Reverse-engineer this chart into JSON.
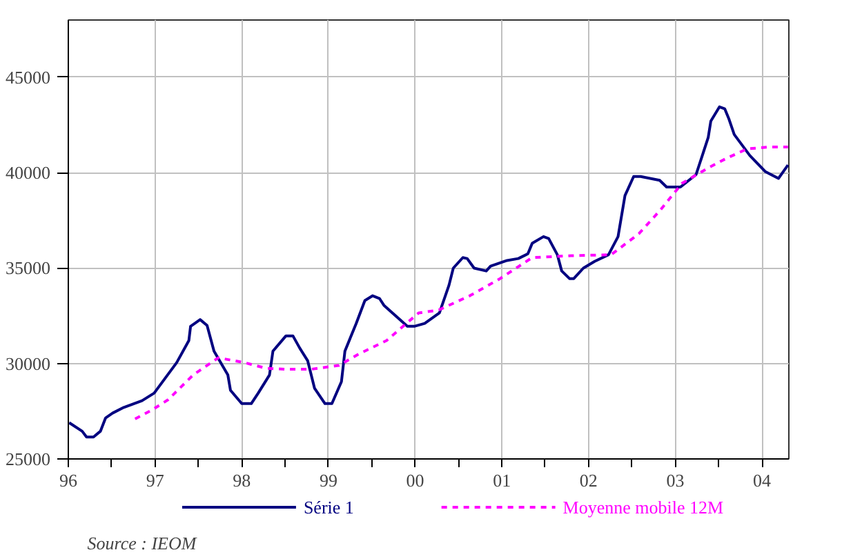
{
  "chart_data": {
    "type": "line",
    "xlim": [
      1996,
      2004.31
    ],
    "xticks": [
      {
        "value": 1996,
        "label": "96"
      },
      {
        "value": 1996.5,
        "label": null
      },
      {
        "value": 1997,
        "label": "97"
      },
      {
        "value": 1997.5,
        "label": null
      },
      {
        "value": 1998,
        "label": "98"
      },
      {
        "value": 1998.5,
        "label": null
      },
      {
        "value": 1999,
        "label": "99"
      },
      {
        "value": 1999.5,
        "label": null
      },
      {
        "value": 2000,
        "label": "00"
      },
      {
        "value": 2000.5,
        "label": null
      },
      {
        "value": 2001,
        "label": "01"
      },
      {
        "value": 2001.5,
        "label": null
      },
      {
        "value": 2002,
        "label": "02"
      },
      {
        "value": 2002.5,
        "label": null
      },
      {
        "value": 2003,
        "label": "03"
      },
      {
        "value": 2003.5,
        "label": null
      },
      {
        "value": 2004,
        "label": "04"
      }
    ],
    "ylim": [
      25000,
      48000
    ],
    "yticks": [
      25000,
      30000,
      35000,
      40000,
      45000
    ],
    "grid": true,
    "legend": "bottom",
    "annotations": [
      "Source : IEOM"
    ],
    "series": [
      {
        "name": "Série 1",
        "color": "#000080",
        "line_style": "solid",
        "x": [
          1996.01,
          1996.16,
          1996.21,
          1996.29,
          1996.37,
          1996.43,
          1996.51,
          1996.64,
          1996.85,
          1996.99,
          1997.25,
          1997.39,
          1997.41,
          1997.52,
          1997.6,
          1997.68,
          1997.84,
          1997.87,
          1998.0,
          1998.11,
          1998.19,
          1998.32,
          1998.36,
          1998.51,
          1998.59,
          1998.67,
          1998.76,
          1998.84,
          1998.96,
          1999.04,
          1999.15,
          1999.19,
          1999.32,
          1999.42,
          1999.51,
          1999.59,
          1999.64,
          1999.91,
          1999.99,
          2000.11,
          2000.28,
          2000.39,
          2000.44,
          2000.55,
          2000.6,
          2000.68,
          2000.82,
          2000.87,
          2001.06,
          2001.19,
          2001.3,
          2001.35,
          2001.48,
          2001.54,
          2001.64,
          2001.69,
          2001.78,
          2001.83,
          2001.94,
          2002.07,
          2002.23,
          2002.34,
          2002.42,
          2002.52,
          2002.6,
          2002.82,
          2002.9,
          2003.06,
          2003.24,
          2003.38,
          2003.41,
          2003.51,
          2003.57,
          2003.62,
          2003.68,
          2003.86,
          2004.04,
          2004.19,
          2004.3
        ],
        "values": [
          26900,
          26450,
          26150,
          26150,
          26450,
          27150,
          27400,
          27700,
          28050,
          28450,
          30050,
          31200,
          31950,
          32300,
          32000,
          30650,
          29400,
          28600,
          27900,
          27900,
          28450,
          29400,
          30650,
          31450,
          31450,
          30800,
          30150,
          28700,
          27900,
          27900,
          29050,
          30650,
          32100,
          33300,
          33550,
          33400,
          33050,
          31950,
          31950,
          32100,
          32650,
          34100,
          35000,
          35550,
          35500,
          35000,
          34850,
          35100,
          35400,
          35500,
          35750,
          36300,
          36650,
          36550,
          35700,
          34850,
          34450,
          34450,
          35000,
          35350,
          35700,
          36650,
          38800,
          39800,
          39800,
          39600,
          39250,
          39250,
          39900,
          41850,
          42700,
          43450,
          43350,
          42800,
          42000,
          40900,
          40050,
          39700,
          40400
        ]
      },
      {
        "name": "Moyenne mobile 12M",
        "color": "#ff00ff",
        "line_style": "dashed",
        "x": [
          1996.77,
          1996.96,
          1997.15,
          1997.44,
          1997.73,
          1998.03,
          1998.28,
          1998.51,
          1998.8,
          1999.12,
          1999.35,
          1999.67,
          2000.04,
          2000.27,
          2000.63,
          2000.98,
          2001.35,
          2001.8,
          2002.26,
          2002.58,
          2002.82,
          2003.08,
          2003.38,
          2003.59,
          2003.83,
          2004.1,
          2004.3
        ],
        "values": [
          27100,
          27550,
          28100,
          29400,
          30300,
          30050,
          29750,
          29700,
          29700,
          29900,
          30500,
          31200,
          32650,
          32800,
          33550,
          34450,
          35550,
          35650,
          35700,
          36800,
          38000,
          39450,
          40250,
          40750,
          41250,
          41350,
          41350
        ]
      }
    ]
  }
}
